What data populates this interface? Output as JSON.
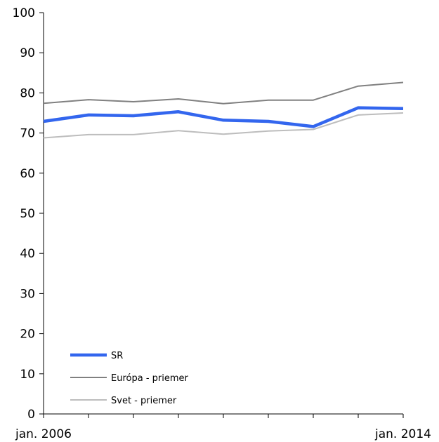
{
  "chart_data": {
    "type": "line",
    "title": "",
    "xlabel": "",
    "ylabel": "",
    "x": [
      "jan. 2006",
      "",
      "",
      "",
      "",
      "",
      "",
      "",
      "jan. 2014"
    ],
    "x_tick_labels_shown": [
      "jan. 2006",
      "jan. 2014"
    ],
    "ylim": [
      0,
      100
    ],
    "y_ticks": [
      0,
      10,
      20,
      30,
      40,
      50,
      60,
      70,
      80,
      90,
      100
    ],
    "grid": false,
    "legend_position": "bottom-left",
    "series": [
      {
        "name": "SR",
        "color": "#3366ee",
        "values": [
          72.9,
          74.5,
          74.3,
          75.3,
          73.2,
          72.9,
          71.6,
          76.3,
          76.1
        ]
      },
      {
        "name": "Európa - priemer",
        "color": "#808080",
        "values": [
          77.4,
          78.3,
          77.8,
          78.5,
          77.3,
          78.2,
          78.2,
          81.7,
          82.6
        ]
      },
      {
        "name": "Svet - priemer",
        "color": "#bdbdbd",
        "values": [
          68.8,
          69.6,
          69.6,
          70.6,
          69.7,
          70.5,
          70.9,
          74.5,
          75.0
        ]
      }
    ]
  }
}
